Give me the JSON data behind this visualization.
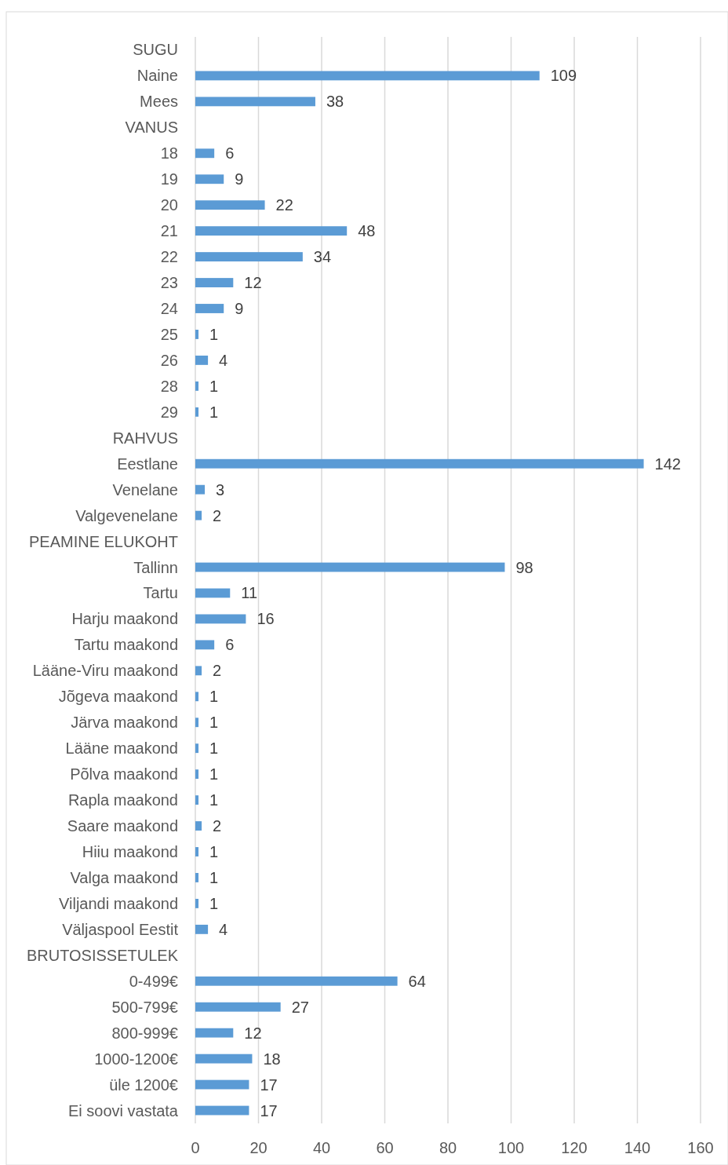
{
  "chart_data": {
    "type": "bar",
    "orientation": "horizontal",
    "categories": [
      "SUGU",
      "Naine",
      "Mees",
      "VANUS",
      "18",
      "19",
      "20",
      "21",
      "22",
      "23",
      "24",
      "25",
      "26",
      "28",
      "29",
      "RAHVUS",
      "Eestlane",
      "Venelane",
      "Valgevenelane",
      "PEAMINE ELUKOHT",
      "Tallinn",
      "Tartu",
      "Harju maakond",
      "Tartu maakond",
      "Lääne-Viru maakond",
      "Jõgeva maakond",
      "Järva maakond",
      "Lääne maakond",
      "Põlva maakond",
      "Rapla maakond",
      "Saare maakond",
      "Hiiu maakond",
      "Valga maakond",
      "Viljandi maakond",
      "Väljaspool Eestit",
      "BRUTOSISSETULEK",
      "0-499€",
      "500-799€",
      "800-999€",
      "1000-1200€",
      "üle 1200€",
      "Ei soovi vastata"
    ],
    "values": [
      null,
      109,
      38,
      null,
      6,
      9,
      22,
      48,
      34,
      12,
      9,
      1,
      4,
      1,
      1,
      null,
      142,
      3,
      2,
      null,
      98,
      11,
      16,
      6,
      2,
      1,
      1,
      1,
      1,
      1,
      2,
      1,
      1,
      1,
      4,
      null,
      64,
      27,
      12,
      18,
      17,
      17
    ],
    "color": "#5b9bd5",
    "xlim": [
      0,
      160
    ],
    "xticks": [
      0,
      20,
      40,
      60,
      80,
      100,
      120,
      140,
      160
    ],
    "grid": "x",
    "data_labels": true
  }
}
